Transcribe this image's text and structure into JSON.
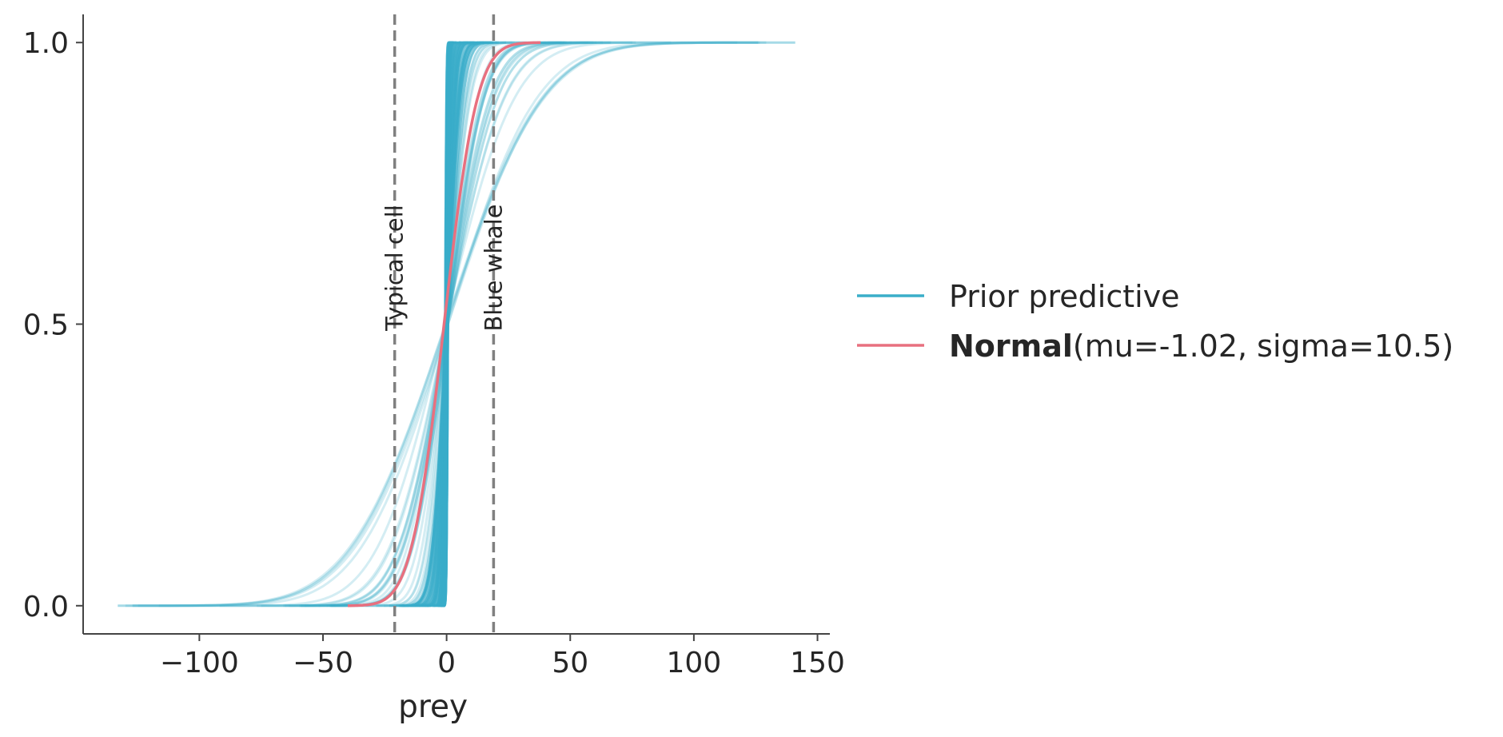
{
  "chart_data": {
    "type": "line",
    "xlabel": "prey",
    "ylabel": "",
    "xlim": [
      -147,
      155
    ],
    "ylim": [
      -0.05,
      1.05
    ],
    "xticks": [
      -100,
      -50,
      0,
      50,
      100,
      150
    ],
    "xtick_labels": [
      "−100",
      "−50",
      "0",
      "50",
      "100",
      "150"
    ],
    "yticks": [
      0.0,
      0.5,
      1.0
    ],
    "ytick_labels": [
      "0.0",
      "0.5",
      "1.0"
    ],
    "grid": false,
    "legend_placement": "right",
    "series": [
      {
        "name": "Prior predictive",
        "kind": "ecdf_ensemble",
        "color": "#3aaec9",
        "median": 0,
        "draws_scale_range": [
          0.4,
          32
        ],
        "x_range": [
          -133,
          141
        ]
      },
      {
        "name_bold": "Normal",
        "name_rest": "(mu=-1.02, sigma=10.5)",
        "kind": "normal_cdf",
        "color": "#e8707f",
        "mu": -1.02,
        "sigma": 10.5,
        "x_range": [
          -40,
          38
        ]
      }
    ],
    "reference_lines": [
      {
        "x": -21,
        "label": "Typical cell",
        "color": "#808080",
        "style": "dashed"
      },
      {
        "x": 19,
        "label": "Blue whale",
        "color": "#808080",
        "style": "dashed"
      }
    ]
  }
}
